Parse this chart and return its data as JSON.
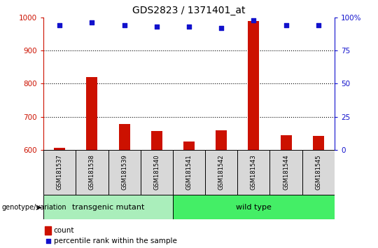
{
  "title": "GDS2823 / 1371401_at",
  "samples": [
    "GSM181537",
    "GSM181538",
    "GSM181539",
    "GSM181540",
    "GSM181541",
    "GSM181542",
    "GSM181543",
    "GSM181544",
    "GSM181545"
  ],
  "counts": [
    607,
    820,
    678,
    658,
    626,
    660,
    990,
    645,
    643
  ],
  "percentile_ranks": [
    94,
    96,
    94,
    93,
    93,
    92,
    98,
    94,
    94
  ],
  "group_defs": [
    {
      "label": "transgenic mutant",
      "start": 0,
      "end": 3,
      "color": "#AAEEBB"
    },
    {
      "label": "wild type",
      "start": 4,
      "end": 8,
      "color": "#44EE66"
    }
  ],
  "bar_color": "#CC1100",
  "dot_color": "#1111CC",
  "left_ylim": [
    600,
    1000
  ],
  "right_ylim": [
    0,
    100
  ],
  "left_yticks": [
    600,
    700,
    800,
    900,
    1000
  ],
  "right_yticks": [
    0,
    25,
    50,
    75,
    100
  ],
  "right_yticklabels": [
    "0",
    "25",
    "50",
    "75",
    "100%"
  ],
  "grid_values": [
    700,
    800,
    900
  ],
  "left_tick_color": "#CC1100",
  "right_tick_color": "#1111CC",
  "sample_box_color": "#D8D8D8",
  "legend_count_color": "#CC1100",
  "legend_dot_color": "#1111CC"
}
